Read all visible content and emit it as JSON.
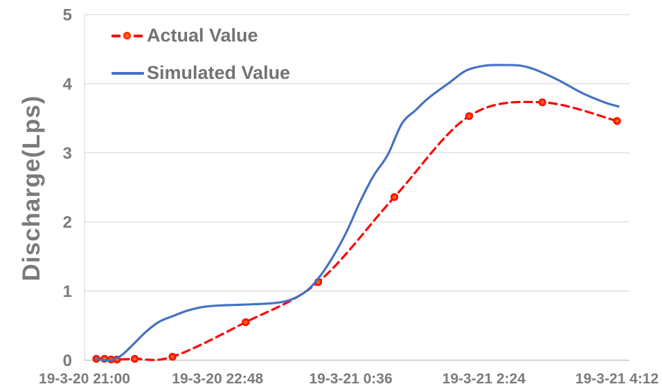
{
  "chart_data": {
    "type": "line",
    "title": "",
    "xlabel": "",
    "ylabel": "Discharge(Lps)",
    "ylim": [
      0,
      5
    ],
    "yticks": [
      0,
      1,
      2,
      3,
      4,
      5
    ],
    "grid": true,
    "x_axis": {
      "unit": "hours since 19-3-20 21:00",
      "xlim": [
        0,
        7.368
      ],
      "ticks": [
        {
          "h": 0.0,
          "label": "19-3-20 21:00"
        },
        {
          "h": 1.8,
          "label": "19-3-20 22:48"
        },
        {
          "h": 3.6,
          "label": "19-3-21 0:36"
        },
        {
          "h": 5.4,
          "label": "19-3-21 2:24"
        },
        {
          "h": 7.2,
          "label": "19-3-21 4:12"
        }
      ]
    },
    "legend": {
      "position": "top-left"
    },
    "series": [
      {
        "name": "Actual Value",
        "style": "dashed",
        "markers": true,
        "color": "#ff0000",
        "points": [
          [
            0.16,
            0.02
          ],
          [
            0.27,
            0.02
          ],
          [
            0.36,
            0.01
          ],
          [
            0.44,
            0.01
          ],
          [
            0.68,
            0.02
          ],
          [
            1.19,
            0.05
          ],
          [
            2.18,
            0.55
          ],
          [
            3.16,
            1.13
          ],
          [
            4.19,
            2.36
          ],
          [
            5.2,
            3.53
          ],
          [
            6.19,
            3.73
          ],
          [
            7.2,
            3.46
          ]
        ]
      },
      {
        "name": "Simulated Value",
        "style": "solid",
        "markers": false,
        "color": "#4472c4",
        "points": [
          [
            0.15,
            0.02
          ],
          [
            0.25,
            0.0
          ],
          [
            0.36,
            0.0
          ],
          [
            0.5,
            0.07
          ],
          [
            0.66,
            0.23
          ],
          [
            0.82,
            0.4
          ],
          [
            1.0,
            0.55
          ],
          [
            1.2,
            0.64
          ],
          [
            1.4,
            0.72
          ],
          [
            1.6,
            0.77
          ],
          [
            1.8,
            0.79
          ],
          [
            2.05,
            0.8
          ],
          [
            2.3,
            0.81
          ],
          [
            2.6,
            0.83
          ],
          [
            2.8,
            0.88
          ],
          [
            3.0,
            1.0
          ],
          [
            3.16,
            1.18
          ],
          [
            3.35,
            1.48
          ],
          [
            3.54,
            1.85
          ],
          [
            3.73,
            2.3
          ],
          [
            3.91,
            2.67
          ],
          [
            4.1,
            2.97
          ],
          [
            4.29,
            3.42
          ],
          [
            4.48,
            3.62
          ],
          [
            4.66,
            3.8
          ],
          [
            4.94,
            4.02
          ],
          [
            5.16,
            4.19
          ],
          [
            5.41,
            4.26
          ],
          [
            5.66,
            4.27
          ],
          [
            5.9,
            4.26
          ],
          [
            6.1,
            4.2
          ],
          [
            6.41,
            4.05
          ],
          [
            6.72,
            3.87
          ],
          [
            7.03,
            3.73
          ],
          [
            7.22,
            3.67
          ]
        ]
      }
    ],
    "colors": {
      "actual": "#ff0000",
      "simulated": "#4472c4",
      "gridline": "#d9d9d9",
      "axis_line": "#c3c3c3",
      "tick_text": "#7b7b7b",
      "legend_text": "#737373",
      "axis_title_text": "#7a7a7a",
      "marker_center": "#ff8a2a"
    }
  }
}
